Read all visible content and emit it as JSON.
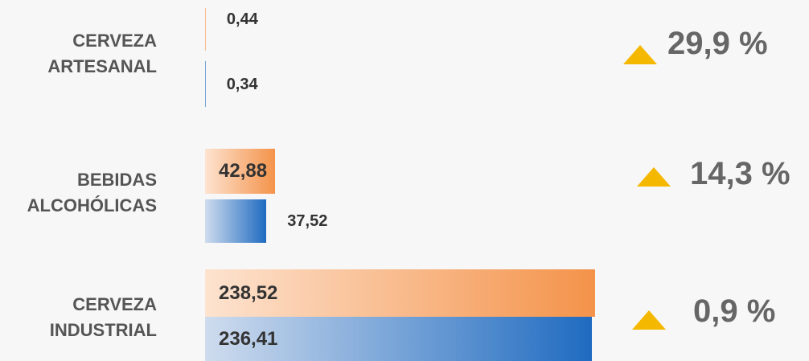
{
  "chart_data": {
    "type": "bar",
    "orientation": "horizontal",
    "categories": [
      "CERVEZA ARTESANAL",
      "BEBIDAS ALCOHÓLICAS",
      "CERVEZA INDUSTRIAL"
    ],
    "series": [
      {
        "color": "#f4934a",
        "values": [
          0.44,
          42.88,
          238.52
        ],
        "value_labels": [
          "0,44",
          "42,88",
          "238,52"
        ]
      },
      {
        "color": "#1f6bc0",
        "values": [
          0.34,
          37.52,
          236.41
        ],
        "value_labels": [
          "0,34",
          "37,52",
          "236,41"
        ]
      }
    ],
    "annotations": [
      "29,9 %",
      "14,3 %",
      "0,9 %"
    ]
  }
}
